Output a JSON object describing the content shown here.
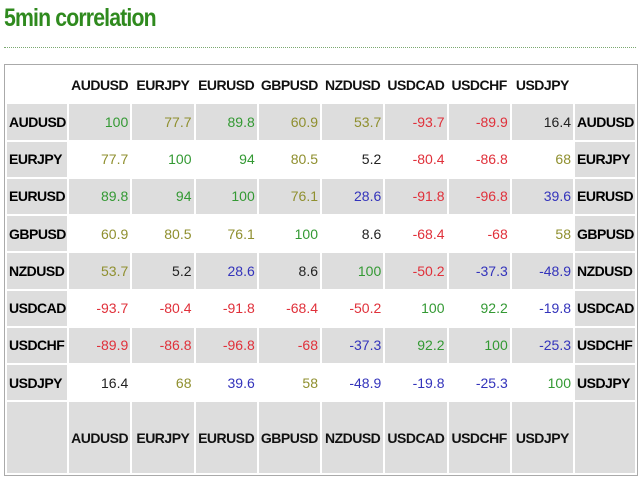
{
  "header": {
    "title": "5min correlation"
  },
  "table": {
    "column_headers": [
      "AUDUSD",
      "EURJPY",
      "EURUSD",
      "GBPUSD",
      "NZDUSD",
      "USDCAD",
      "USDCHF",
      "USDJPY"
    ],
    "footer_headers": [
      "AUDUSD",
      "EURJPY",
      "EURUSD",
      "GBPUSD",
      "NZDUSD",
      "USDCAD",
      "USDCHF",
      "USDJPY"
    ],
    "palette": {
      "g": "#339933",
      "o": "#8f8f2e",
      "r": "#e0303a",
      "b": "#3333bb",
      "k": "#222222"
    },
    "rows": [
      {
        "label": "AUDUSD",
        "label_right": "AUDUSD",
        "values": [
          100,
          77.7,
          89.8,
          60.9,
          53.7,
          -93.7,
          -89.9,
          16.4
        ],
        "colors": [
          "g",
          "o",
          "g",
          "o",
          "o",
          "r",
          "r",
          "k"
        ]
      },
      {
        "label": "EURJPY",
        "label_right": "EURJPY",
        "values": [
          77.7,
          100,
          94,
          80.5,
          5.2,
          -80.4,
          -86.8,
          68
        ],
        "colors": [
          "o",
          "g",
          "g",
          "o",
          "k",
          "r",
          "r",
          "o"
        ]
      },
      {
        "label": "EURUSD",
        "label_right": "EURUSD",
        "values": [
          89.8,
          94,
          100,
          76.1,
          28.6,
          -91.8,
          -96.8,
          39.6
        ],
        "colors": [
          "g",
          "g",
          "g",
          "o",
          "b",
          "r",
          "r",
          "b"
        ]
      },
      {
        "label": "GBPUSD",
        "label_right": "GBPUSD",
        "values": [
          60.9,
          80.5,
          76.1,
          100,
          8.6,
          -68.4,
          -68,
          58
        ],
        "colors": [
          "o",
          "o",
          "o",
          "g",
          "k",
          "r",
          "r",
          "o"
        ]
      },
      {
        "label": "NZDUSD",
        "label_right": "NZDUSD",
        "values": [
          53.7,
          5.2,
          28.6,
          8.6,
          100,
          -50.2,
          -37.3,
          -48.9
        ],
        "colors": [
          "o",
          "k",
          "b",
          "k",
          "g",
          "r",
          "b",
          "b"
        ]
      },
      {
        "label": "USDCAD",
        "label_right": "USDCAD",
        "values": [
          -93.7,
          -80.4,
          -91.8,
          -68.4,
          -50.2,
          100,
          92.2,
          -19.8
        ],
        "colors": [
          "r",
          "r",
          "r",
          "r",
          "r",
          "g",
          "g",
          "b"
        ]
      },
      {
        "label": "USDCHF",
        "label_right": "USDCHF",
        "values": [
          -89.9,
          -86.8,
          -96.8,
          -68,
          -37.3,
          92.2,
          100,
          -25.3
        ],
        "colors": [
          "r",
          "r",
          "r",
          "r",
          "b",
          "g",
          "g",
          "b"
        ]
      },
      {
        "label": "USDJPY",
        "label_right": "USDJPY",
        "values": [
          16.4,
          68,
          39.6,
          58,
          -48.9,
          -19.8,
          -25.3,
          100
        ],
        "colors": [
          "k",
          "o",
          "b",
          "o",
          "b",
          "b",
          "b",
          "g"
        ]
      }
    ]
  }
}
